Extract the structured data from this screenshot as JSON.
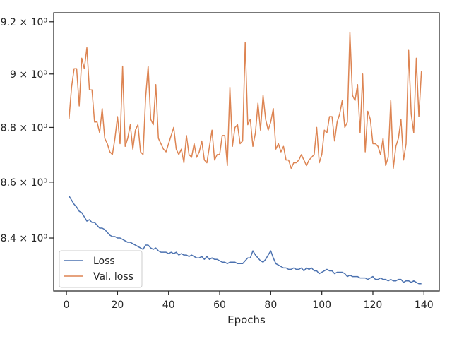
{
  "chart_data": {
    "type": "line",
    "title": "",
    "xlabel": "Epochs",
    "ylabel": "",
    "xlim": [
      -5,
      146
    ],
    "ylim": [
      8.215,
      9.235
    ],
    "y_scale": "log",
    "grid": false,
    "legend_position": "lower-left",
    "x_ticks": [
      0,
      20,
      40,
      60,
      80,
      100,
      120,
      140
    ],
    "x_tick_labels": [
      "0",
      "20",
      "40",
      "60",
      "80",
      "100",
      "120",
      "140"
    ],
    "y_ticks": [
      8.4,
      8.6,
      8.8,
      9.0,
      9.2
    ],
    "y_tick_labels": [
      "8.4 × 10⁰",
      "8.6 × 10⁰",
      "8.8 × 10⁰",
      "9 × 10⁰",
      "9.2 × 10⁰"
    ],
    "x": [
      1,
      2,
      3,
      4,
      5,
      6,
      7,
      8,
      9,
      10,
      11,
      12,
      13,
      14,
      15,
      16,
      17,
      18,
      19,
      20,
      21,
      22,
      23,
      24,
      25,
      26,
      27,
      28,
      29,
      30,
      31,
      32,
      33,
      34,
      35,
      36,
      37,
      38,
      39,
      40,
      41,
      42,
      43,
      44,
      45,
      46,
      47,
      48,
      49,
      50,
      51,
      52,
      53,
      54,
      55,
      56,
      57,
      58,
      59,
      60,
      61,
      62,
      63,
      64,
      65,
      66,
      67,
      68,
      69,
      70,
      71,
      72,
      73,
      74,
      75,
      76,
      77,
      78,
      79,
      80,
      81,
      82,
      83,
      84,
      85,
      86,
      87,
      88,
      89,
      90,
      91,
      92,
      93,
      94,
      95,
      96,
      97,
      98,
      99,
      100,
      101,
      102,
      103,
      104,
      105,
      106,
      107,
      108,
      109,
      110,
      111,
      112,
      113,
      114,
      115,
      116,
      117,
      118,
      119,
      120,
      121,
      122,
      123,
      124,
      125,
      126,
      127,
      128,
      129,
      130,
      131,
      132,
      133,
      134,
      135,
      136,
      137,
      138,
      139
    ],
    "series": [
      {
        "name": "Loss",
        "color": "#4c72b0",
        "values": [
          8.55,
          8.535,
          8.52,
          8.51,
          8.495,
          8.49,
          8.475,
          8.46,
          8.465,
          8.455,
          8.455,
          8.445,
          8.435,
          8.435,
          8.43,
          8.42,
          8.41,
          8.405,
          8.405,
          8.4,
          8.4,
          8.395,
          8.39,
          8.385,
          8.385,
          8.38,
          8.375,
          8.37,
          8.365,
          8.36,
          8.375,
          8.375,
          8.365,
          8.36,
          8.365,
          8.355,
          8.35,
          8.35,
          8.35,
          8.345,
          8.35,
          8.345,
          8.35,
          8.34,
          8.345,
          8.34,
          8.34,
          8.335,
          8.34,
          8.335,
          8.33,
          8.33,
          8.335,
          8.325,
          8.335,
          8.325,
          8.33,
          8.325,
          8.325,
          8.32,
          8.315,
          8.315,
          8.31,
          8.315,
          8.315,
          8.315,
          8.31,
          8.31,
          8.31,
          8.32,
          8.33,
          8.33,
          8.355,
          8.34,
          8.33,
          8.32,
          8.315,
          8.325,
          8.34,
          8.355,
          8.33,
          8.31,
          8.305,
          8.3,
          8.295,
          8.295,
          8.29,
          8.29,
          8.295,
          8.29,
          8.29,
          8.295,
          8.285,
          8.295,
          8.29,
          8.295,
          8.285,
          8.285,
          8.275,
          8.28,
          8.285,
          8.29,
          8.285,
          8.285,
          8.275,
          8.28,
          8.28,
          8.28,
          8.275,
          8.265,
          8.27,
          8.265,
          8.265,
          8.265,
          8.26,
          8.26,
          8.26,
          8.255,
          8.26,
          8.265,
          8.255,
          8.255,
          8.26,
          8.255,
          8.255,
          8.25,
          8.255,
          8.25,
          8.25,
          8.255,
          8.255,
          8.245,
          8.25,
          8.25,
          8.245,
          8.25,
          8.245,
          8.24,
          8.24
        ]
      },
      {
        "name": "Val. loss",
        "color": "#dd8452",
        "values": [
          8.83,
          8.95,
          9.02,
          9.02,
          8.88,
          9.06,
          9.02,
          9.1,
          8.94,
          8.94,
          8.82,
          8.82,
          8.78,
          8.87,
          8.76,
          8.74,
          8.71,
          8.7,
          8.76,
          8.84,
          8.74,
          9.03,
          8.73,
          8.76,
          8.81,
          8.72,
          8.79,
          8.81,
          8.71,
          8.7,
          8.91,
          9.03,
          8.83,
          8.81,
          8.96,
          8.76,
          8.74,
          8.72,
          8.71,
          8.74,
          8.77,
          8.8,
          8.72,
          8.7,
          8.72,
          8.67,
          8.77,
          8.7,
          8.69,
          8.74,
          8.69,
          8.71,
          8.75,
          8.68,
          8.67,
          8.73,
          8.79,
          8.68,
          8.7,
          8.7,
          8.77,
          8.77,
          8.66,
          8.95,
          8.73,
          8.8,
          8.81,
          8.74,
          8.75,
          9.12,
          8.81,
          8.83,
          8.73,
          8.78,
          8.89,
          8.79,
          8.92,
          8.83,
          8.79,
          8.82,
          8.87,
          8.72,
          8.74,
          8.71,
          8.73,
          8.68,
          8.68,
          8.65,
          8.67,
          8.67,
          8.68,
          8.7,
          8.68,
          8.66,
          8.68,
          8.69,
          8.7,
          8.8,
          8.67,
          8.7,
          8.79,
          8.78,
          8.84,
          8.84,
          8.75,
          8.82,
          8.85,
          8.9,
          8.8,
          8.82,
          9.16,
          8.92,
          8.9,
          8.96,
          8.78,
          9.0,
          8.71,
          8.86,
          8.83,
          8.74,
          8.74,
          8.73,
          8.7,
          8.76,
          8.66,
          8.69,
          8.9,
          8.65,
          8.73,
          8.76,
          8.83,
          8.68,
          8.74,
          9.09,
          8.85,
          8.78,
          9.06,
          8.84,
          9.01
        ]
      }
    ]
  }
}
